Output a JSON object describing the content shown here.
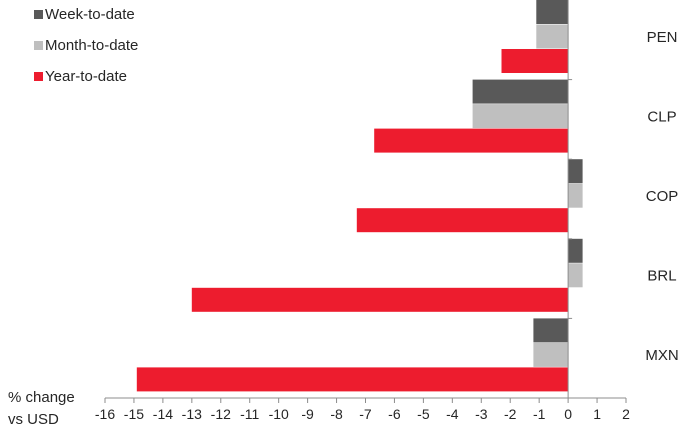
{
  "chart_data": {
    "type": "bar",
    "orientation": "horizontal",
    "title": "",
    "xlabel": "% change vs USD",
    "xlabel_lines": [
      "% change",
      "vs USD"
    ],
    "categories": [
      "PEN",
      "CLP",
      "COP",
      "BRL",
      "MXN"
    ],
    "series": [
      {
        "name": "Week-to-date",
        "color": "#595959",
        "values": [
          -1.1,
          -3.3,
          0.5,
          0.5,
          -1.2
        ]
      },
      {
        "name": "Month-to-date",
        "color": "#bfbfbf",
        "values": [
          -1.1,
          -3.3,
          0.5,
          0.5,
          -1.2
        ]
      },
      {
        "name": "Year-to-date",
        "color": "#ed1c2e",
        "values": [
          -2.3,
          -6.7,
          -7.3,
          -13.0,
          -14.9
        ]
      }
    ],
    "xlim": [
      -16,
      2
    ],
    "xticks": [
      "-16",
      "-15",
      "-14",
      "-13",
      "-12",
      "-11",
      "-10",
      "-9",
      "-8",
      "-7",
      "-6",
      "-5",
      "-4",
      "-3",
      "-2",
      "-1",
      "0",
      "1",
      "2"
    ],
    "legend_position": "top-left",
    "grid": false
  }
}
